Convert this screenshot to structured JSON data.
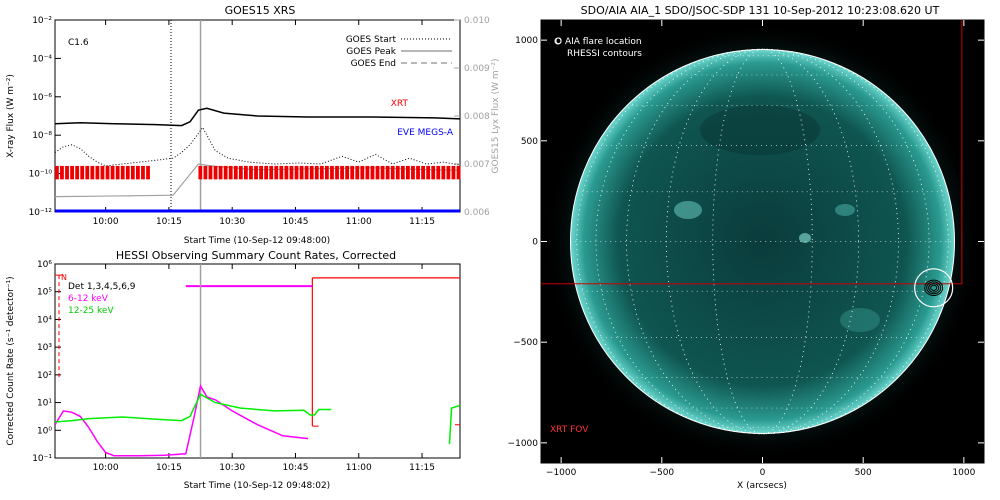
{
  "chart_data": [
    {
      "id": "goes",
      "type": "line",
      "title": "GOES15 XRS",
      "xlabel": "Start Time (10-Sep-12 09:48:00)",
      "ylabel": "X-ray Flux (W m⁻²)",
      "ylabel2": "GOES15 Lyx Flux (W m⁻²)",
      "xlim": [
        0,
        96
      ],
      "xticks": [
        {
          "t": 12,
          "label": "10:00"
        },
        {
          "t": 27,
          "label": "10:15"
        },
        {
          "t": 42,
          "label": "10:30"
        },
        {
          "t": 57,
          "label": "10:45"
        },
        {
          "t": 72,
          "label": "11:00"
        },
        {
          "t": 87,
          "label": "11:15"
        }
      ],
      "ylim_log": [
        -12,
        -2
      ],
      "yticks": [
        {
          "e": -2,
          "label": "10⁻²"
        },
        {
          "e": -4,
          "label": "10⁻⁴"
        },
        {
          "e": -6,
          "label": "10⁻⁶"
        },
        {
          "e": -8,
          "label": "10⁻⁸"
        },
        {
          "e": -10,
          "label": "10⁻¹⁰"
        },
        {
          "e": -12,
          "label": "10⁻¹²"
        }
      ],
      "y2lim": [
        0.006,
        0.01
      ],
      "y2ticks": [
        {
          "v": 0.006,
          "label": "0.006"
        },
        {
          "v": 0.007,
          "label": "0.007"
        },
        {
          "v": 0.008,
          "label": "0.008"
        },
        {
          "v": 0.009,
          "label": "0.009"
        },
        {
          "v": 0.01,
          "label": "0.010"
        }
      ],
      "class_label": "C1.6",
      "legend": [
        {
          "label": "GOES Start",
          "style": "dotted"
        },
        {
          "label": "GOES Peak",
          "style": "solid"
        },
        {
          "label": "GOES End",
          "style": "dashed"
        }
      ],
      "vlines": {
        "start": 27.5,
        "peak": 34.5
      },
      "series": [
        {
          "name": "XRT",
          "color": "#ff0000",
          "style": "solid-black",
          "points": [
            [
              0,
              -7.4
            ],
            [
              6,
              -7.35
            ],
            [
              14,
              -7.4
            ],
            [
              24,
              -7.45
            ],
            [
              30,
              -7.5
            ],
            [
              32,
              -7.3
            ],
            [
              34,
              -6.7
            ],
            [
              36,
              -6.6
            ],
            [
              40,
              -6.85
            ],
            [
              48,
              -7.0
            ],
            [
              60,
              -7.05
            ],
            [
              75,
              -7.05
            ],
            [
              90,
              -7.1
            ],
            [
              96,
              -7.15
            ]
          ]
        },
        {
          "name": "EVE MEGS-A",
          "color": "#0000ff",
          "style": "dotted",
          "points": [
            [
              0,
              -8.9
            ],
            [
              2,
              -8.6
            ],
            [
              4,
              -8.5
            ],
            [
              6,
              -8.7
            ],
            [
              8,
              -9.1
            ],
            [
              10,
              -9.4
            ],
            [
              12,
              -9.6
            ],
            [
              16,
              -9.5
            ],
            [
              20,
              -9.4
            ],
            [
              24,
              -9.3
            ],
            [
              28,
              -9.2
            ],
            [
              30,
              -8.9
            ],
            [
              32,
              -8.5
            ],
            [
              34,
              -7.9
            ],
            [
              35,
              -7.6
            ],
            [
              36,
              -8.0
            ],
            [
              38,
              -8.8
            ],
            [
              41,
              -9.2
            ],
            [
              46,
              -9.4
            ],
            [
              52,
              -9.5
            ],
            [
              58,
              -9.45
            ],
            [
              63,
              -9.5
            ],
            [
              68,
              -9.1
            ],
            [
              72,
              -9.4
            ],
            [
              76,
              -9.0
            ],
            [
              80,
              -9.5
            ],
            [
              84,
              -9.2
            ],
            [
              88,
              -9.5
            ],
            [
              92,
              -9.4
            ],
            [
              96,
              -9.55
            ]
          ]
        },
        {
          "name": "Lyx",
          "color": "#a0a0a0",
          "style": "solid-gray",
          "axis": "right",
          "points": [
            [
              0,
              0.00632
            ],
            [
              10,
              0.00633
            ],
            [
              20,
              0.00634
            ],
            [
              28,
              0.00635
            ],
            [
              34,
              0.007
            ],
            [
              38,
              0.00695
            ],
            [
              48,
              0.00688
            ],
            [
              60,
              0.0069
            ],
            [
              75,
              0.00692
            ],
            [
              90,
              0.00688
            ],
            [
              96,
              0.00687
            ]
          ]
        }
      ],
      "red_bar_segments": [
        [
          0,
          22
        ],
        [
          34,
          96
        ]
      ],
      "blue_baseline_exp": -11.95
    },
    {
      "id": "hessi",
      "type": "line",
      "title": "HESSI Observing Summary Count Rates, Corrected",
      "xlabel": "Start Time (10-Sep-12 09:48:02)",
      "ylabel": "Corrected Count Rate (s⁻¹ detector⁻¹)",
      "xlim": [
        0,
        96
      ],
      "xticks": [
        {
          "t": 12,
          "label": "10:00"
        },
        {
          "t": 27,
          "label": "10:15"
        },
        {
          "t": 42,
          "label": "10:30"
        },
        {
          "t": 57,
          "label": "10:45"
        },
        {
          "t": 72,
          "label": "11:00"
        },
        {
          "t": 87,
          "label": "11:15"
        }
      ],
      "ylim_log": [
        -1,
        6
      ],
      "yticks": [
        {
          "e": -1,
          "label": "10⁻¹"
        },
        {
          "e": 0,
          "label": "10⁰"
        },
        {
          "e": 1,
          "label": "10¹"
        },
        {
          "e": 2,
          "label": "10²"
        },
        {
          "e": 3,
          "label": "10³"
        },
        {
          "e": 4,
          "label": "10⁴"
        },
        {
          "e": 5,
          "label": "10⁵"
        },
        {
          "e": 6,
          "label": "10⁶"
        }
      ],
      "legend_note": "Det 1,3,4,5,6,9",
      "flag_label": "N",
      "vline_peak": 34.5,
      "series": [
        {
          "name": "6-12 keV",
          "color": "#ff00ff",
          "points": [
            [
              0,
              0.2
            ],
            [
              2,
              0.7
            ],
            [
              4,
              0.65
            ],
            [
              6,
              0.5
            ],
            [
              8,
              0.1
            ],
            [
              10,
              -0.4
            ],
            [
              12,
              -0.8
            ],
            [
              14,
              -0.92
            ],
            [
              20,
              -0.92
            ],
            [
              26,
              -0.9
            ],
            [
              31,
              -0.85
            ],
            [
              33,
              0.5
            ],
            [
              34.5,
              1.6
            ],
            [
              36,
              1.2
            ],
            [
              38,
              1.1
            ],
            [
              42,
              0.7
            ],
            [
              48,
              0.2
            ],
            [
              54,
              -0.2
            ],
            [
              60,
              -0.3
            ]
          ]
        },
        {
          "name": "12-25 keV",
          "color": "#00ee00",
          "points": [
            [
              0,
              0.3
            ],
            [
              4,
              0.35
            ],
            [
              8,
              0.42
            ],
            [
              16,
              0.48
            ],
            [
              24,
              0.4
            ],
            [
              30,
              0.35
            ],
            [
              32,
              0.5
            ],
            [
              34.5,
              1.3
            ],
            [
              38,
              1.0
            ],
            [
              44,
              0.8
            ],
            [
              52,
              0.7
            ],
            [
              59,
              0.72
            ],
            [
              60.5,
              0.55
            ],
            [
              61.5,
              0.55
            ],
            [
              62.5,
              0.75
            ],
            [
              65.5,
              0.75
            ]
          ]
        }
      ]
    },
    {
      "id": "aia",
      "type": "image",
      "title": "SDO/AIA AIA_1 SDO/JSOC-SDP 131 10-Sep-2012 10:23:08.620 UT",
      "xlabel": "X (arcsecs)",
      "ylabel": "",
      "xlim": [
        -1100,
        1100
      ],
      "ylim": [
        -1100,
        1100
      ],
      "xticks": [
        {
          "v": -1000,
          "label": "−1000"
        },
        {
          "v": -500,
          "label": "−500"
        },
        {
          "v": 0,
          "label": "0"
        },
        {
          "v": 500,
          "label": "500"
        },
        {
          "v": 1000,
          "label": "1000"
        }
      ],
      "yticks": [
        {
          "v": 1000,
          "label": "1000"
        },
        {
          "v": 500,
          "label": "500"
        },
        {
          "v": 0,
          "label": "0"
        },
        {
          "v": -500,
          "label": "−500"
        },
        {
          "v": -1000,
          "label": "−1000"
        }
      ],
      "legend": [
        "O AIA flare location",
        "RHESSI contours"
      ],
      "fov_label": "XRT FOV",
      "solar_radius": 955,
      "flare_location": [
        850,
        -230
      ],
      "xrt_fov_box": [
        -1100,
        -210,
        990,
        1100
      ]
    }
  ]
}
